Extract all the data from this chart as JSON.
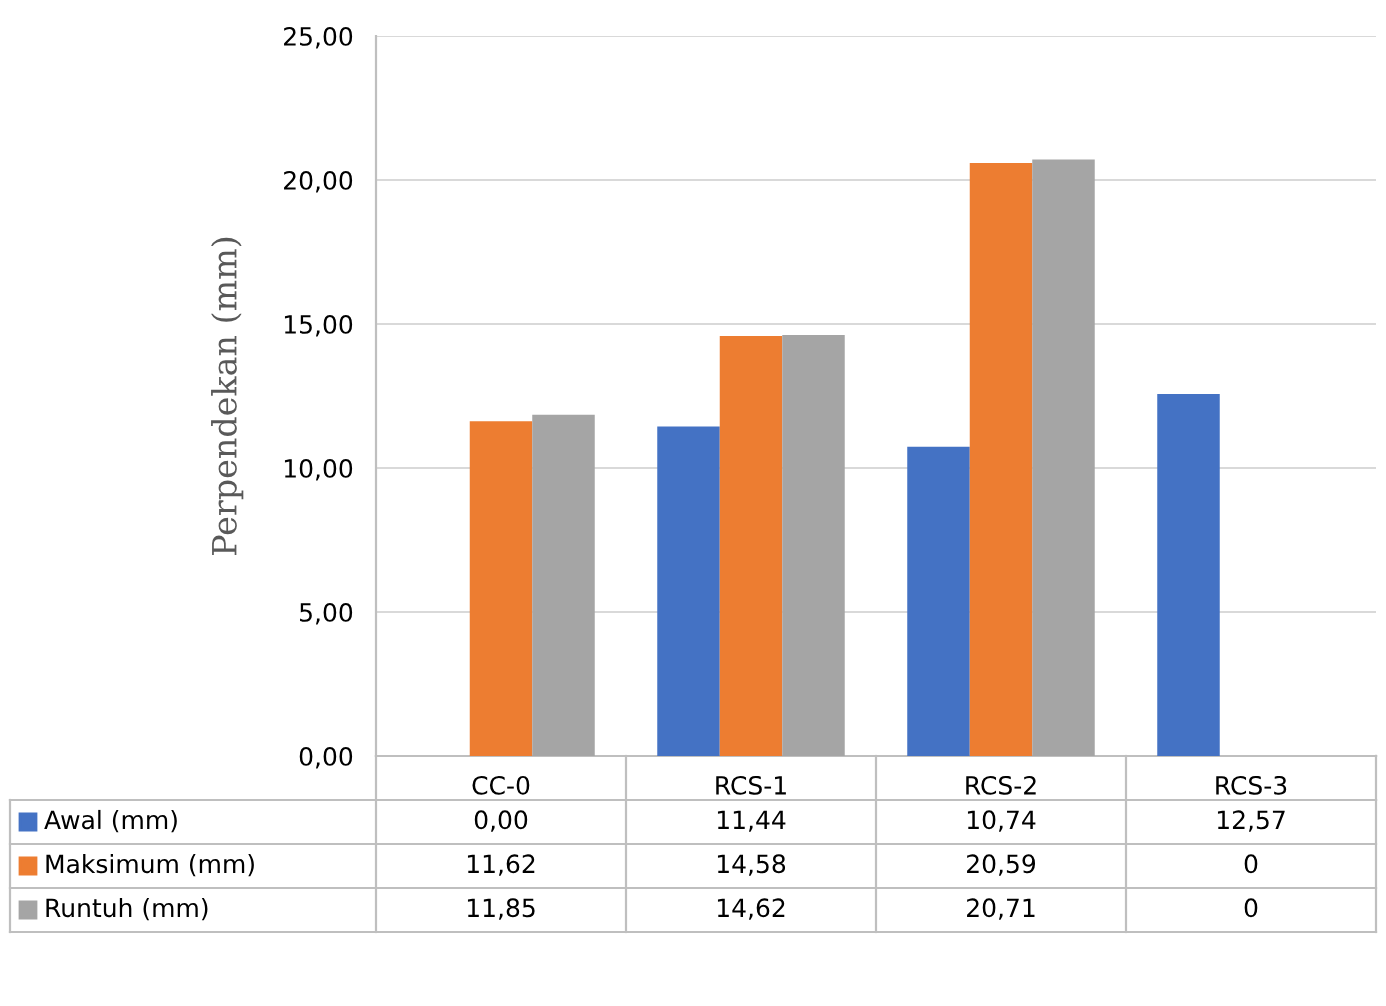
{
  "chart_data": {
    "type": "bar",
    "ylabel": "Perpendekan (mm)",
    "categories": [
      "CC-0",
      "RCS-1",
      "RCS-2",
      "RCS-3"
    ],
    "series": [
      {
        "name": "Awal (mm)",
        "color": "#4472c4",
        "values": [
          0.0,
          11.44,
          10.74,
          12.57
        ],
        "value_labels": [
          "0,00",
          "11,44",
          "10,74",
          "12,57"
        ]
      },
      {
        "name": "Maksimum (mm)",
        "color": "#ed7d31",
        "values": [
          11.62,
          14.58,
          20.59,
          0
        ],
        "value_labels": [
          "11,62",
          "14,58",
          "20,59",
          "0"
        ]
      },
      {
        "name": "Runtuh (mm)",
        "color": "#a5a5a5",
        "values": [
          11.85,
          14.62,
          20.71,
          0
        ],
        "value_labels": [
          "11,85",
          "14,62",
          "20,71",
          "0"
        ]
      }
    ],
    "ylim": [
      0,
      25
    ],
    "yticks": [
      {
        "value": 0,
        "label": "0,00"
      },
      {
        "value": 5,
        "label": "5,00"
      },
      {
        "value": 10,
        "label": "10,00"
      },
      {
        "value": 15,
        "label": "15,00"
      },
      {
        "value": 20,
        "label": "20,00"
      },
      {
        "value": 25,
        "label": "25,00"
      }
    ],
    "grid": "y",
    "legend": "bottom"
  }
}
